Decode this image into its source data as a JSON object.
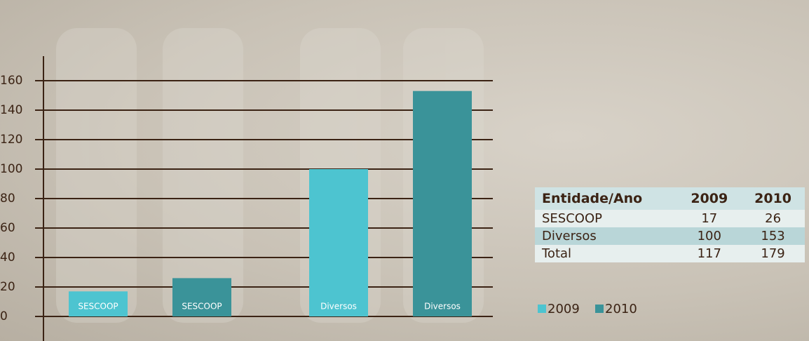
{
  "chart_data": {
    "type": "bar",
    "categories": [
      "SESCOOP",
      "Diversos"
    ],
    "series": [
      {
        "name": "2009",
        "color": "#4dc4d0",
        "values": [
          17,
          100
        ]
      },
      {
        "name": "2010",
        "color": "#3a9399",
        "values": [
          26,
          153
        ]
      }
    ],
    "ylim": [
      0,
      160
    ],
    "yticks": [
      0,
      20,
      40,
      60,
      80,
      100,
      120,
      140,
      160
    ],
    "grid": true
  },
  "table": {
    "header": "Entidade/Ano",
    "total_label": "Total",
    "totals": [
      117,
      179
    ]
  }
}
